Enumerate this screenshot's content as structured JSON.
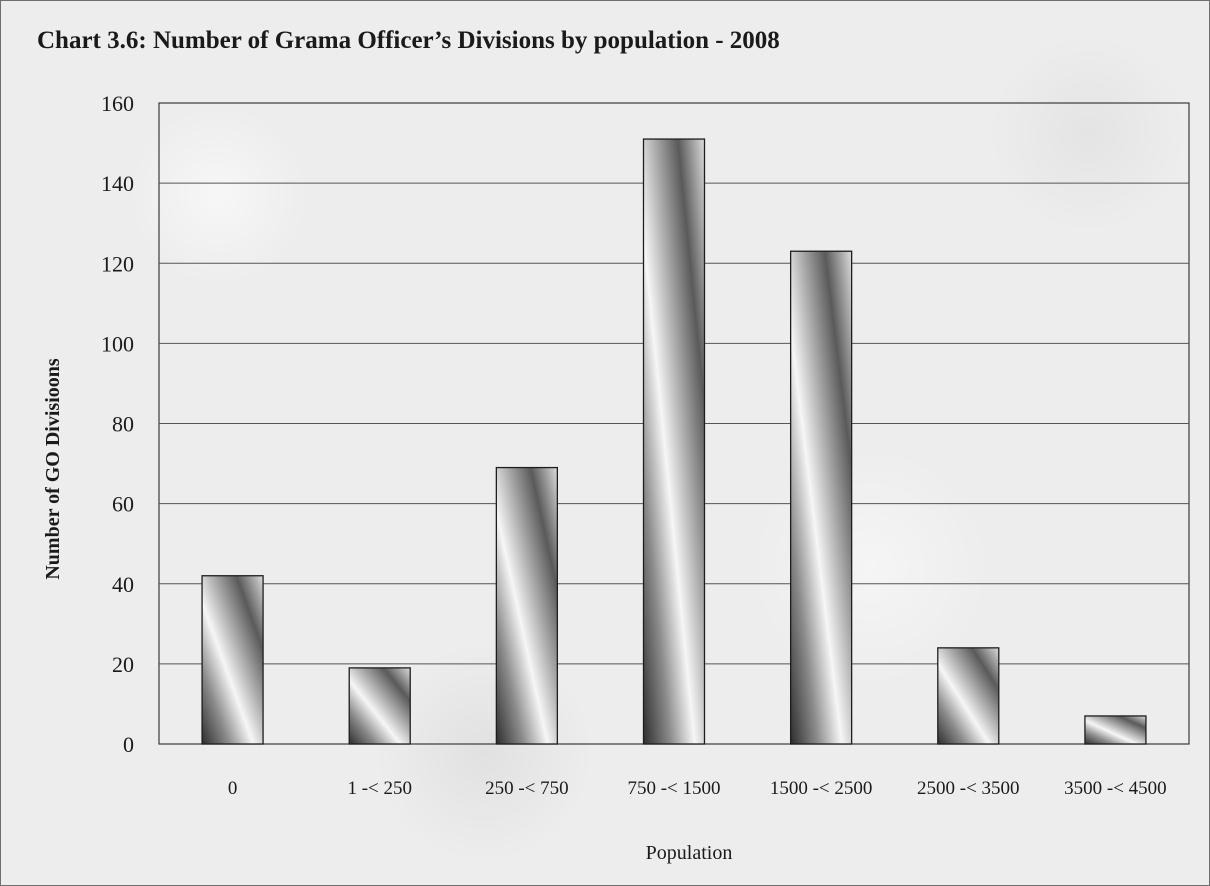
{
  "chart_data": {
    "type": "bar",
    "title": "Chart 3.6: Number of Grama Officer’s Divisions by population - 2008",
    "xlabel": "Population",
    "ylabel": "Number of GO Divisioons",
    "categories": [
      "0",
      "1 -< 250",
      "250 -< 750",
      "750 -< 1500",
      "1500 -< 2500",
      "2500 -< 3500",
      "3500 -< 4500"
    ],
    "values": [
      42,
      19,
      69,
      151,
      123,
      24,
      7
    ],
    "ylim": [
      0,
      160
    ],
    "yticks": [
      0,
      20,
      40,
      60,
      80,
      100,
      120,
      140,
      160
    ],
    "grid": true,
    "legend": "none"
  },
  "colors": {
    "bar_dark": "#2e2e2e",
    "bar_mid": "#8a8a8a",
    "bar_light": "#f4f4f4",
    "gridline": "#555555",
    "axis": "#3a3a3a"
  }
}
